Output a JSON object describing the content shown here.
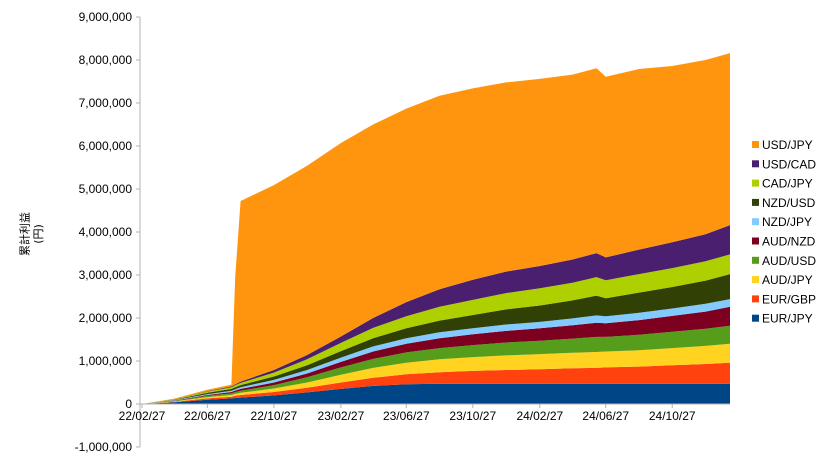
{
  "chart_data": {
    "type": "area",
    "stacked": true,
    "ylabel": "累計利益\n(円)",
    "ylim": [
      -1000000,
      9000000
    ],
    "yticks": [
      -1000000,
      0,
      1000000,
      2000000,
      3000000,
      4000000,
      5000000,
      6000000,
      7000000,
      8000000,
      9000000
    ],
    "ytick_labels": [
      "-1,000,000",
      "0",
      "1,000,000",
      "2,000,000",
      "3,000,000",
      "4,000,000",
      "5,000,000",
      "6,000,000",
      "7,000,000",
      "8,000,000",
      "9,000,000"
    ],
    "xtick_labels": [
      "22/02/27",
      "22/06/27",
      "22/10/27",
      "23/02/27",
      "23/06/27",
      "23/10/27",
      "24/02/27",
      "24/06/27",
      "24/10/27"
    ],
    "x": [
      "22/02/27",
      "22/04/27",
      "22/06/27",
      "22/08/10",
      "22/08/17",
      "22/08/27",
      "22/10/27",
      "22/12/27",
      "23/02/27",
      "23/04/27",
      "23/06/27",
      "23/08/27",
      "23/10/27",
      "23/12/27",
      "24/02/27",
      "24/04/27",
      "24/06/10",
      "24/06/27",
      "24/08/27",
      "24/10/27",
      "24/12/27",
      "25/02/10"
    ],
    "series": [
      {
        "name": "EUR/JPY",
        "color": "#004586",
        "values": [
          0,
          40000,
          100000,
          130000,
          140000,
          150000,
          200000,
          270000,
          350000,
          420000,
          460000,
          470000,
          470000,
          470000,
          470000,
          470000,
          470000,
          470000,
          470000,
          470000,
          470000,
          470000
        ]
      },
      {
        "name": "EUR/GBP",
        "color": "#ff420e",
        "values": [
          0,
          10000,
          30000,
          40000,
          50000,
          60000,
          80000,
          110000,
          150000,
          190000,
          230000,
          270000,
          300000,
          320000,
          340000,
          360000,
          370000,
          380000,
          400000,
          430000,
          460000,
          490000
        ]
      },
      {
        "name": "AUD/JPY",
        "color": "#ffd320",
        "values": [
          0,
          10000,
          30000,
          40000,
          45000,
          50000,
          80000,
          120000,
          180000,
          230000,
          270000,
          300000,
          320000,
          340000,
          350000,
          360000,
          370000,
          370000,
          380000,
          400000,
          420000,
          440000
        ]
      },
      {
        "name": "AUD/USD",
        "color": "#579d1c",
        "values": [
          0,
          10000,
          30000,
          40000,
          45000,
          50000,
          80000,
          120000,
          170000,
          210000,
          240000,
          260000,
          280000,
          300000,
          310000,
          330000,
          350000,
          340000,
          360000,
          380000,
          400000,
          420000
        ]
      },
      {
        "name": "AUD/NZD",
        "color": "#7e0021",
        "values": [
          0,
          10000,
          20000,
          30000,
          35000,
          40000,
          60000,
          90000,
          130000,
          170000,
          200000,
          230000,
          250000,
          270000,
          290000,
          310000,
          330000,
          320000,
          340000,
          370000,
          400000,
          440000
        ]
      },
      {
        "name": "NZD/JPY",
        "color": "#83caff",
        "values": [
          0,
          10000,
          20000,
          30000,
          30000,
          40000,
          60000,
          80000,
          100000,
          120000,
          130000,
          140000,
          140000,
          150000,
          150000,
          160000,
          170000,
          160000,
          170000,
          170000,
          180000,
          180000
        ]
      },
      {
        "name": "NZD/USD",
        "color": "#314004",
        "values": [
          0,
          10000,
          30000,
          40000,
          45000,
          50000,
          80000,
          110000,
          150000,
          190000,
          230000,
          270000,
          310000,
          350000,
          380000,
          420000,
          460000,
          420000,
          470000,
          500000,
          540000,
          580000
        ]
      },
      {
        "name": "CAD/JPY",
        "color": "#aecf00",
        "values": [
          0,
          10000,
          30000,
          40000,
          45000,
          50000,
          90000,
          140000,
          190000,
          240000,
          280000,
          320000,
          350000,
          380000,
          400000,
          410000,
          430000,
          420000,
          430000,
          440000,
          450000,
          460000
        ]
      },
      {
        "name": "USD/CAD",
        "color": "#4b1f6f",
        "values": [
          0,
          5000,
          10000,
          20000,
          20000,
          30000,
          60000,
          100000,
          150000,
          230000,
          330000,
          410000,
          470000,
          500000,
          520000,
          540000,
          560000,
          530000,
          570000,
          600000,
          630000,
          680000
        ]
      },
      {
        "name": "USD/JPY",
        "color": "#ff950e",
        "values": [
          0,
          10000,
          30000,
          40000,
          2500000,
          4200000,
          4300000,
          4400000,
          4500000,
          4500000,
          4500000,
          4500000,
          4450000,
          4400000,
          4350000,
          4300000,
          4300000,
          4200000,
          4200000,
          4100000,
          4050000,
          4000000
        ]
      }
    ],
    "legend_position": "right",
    "grid": false
  }
}
